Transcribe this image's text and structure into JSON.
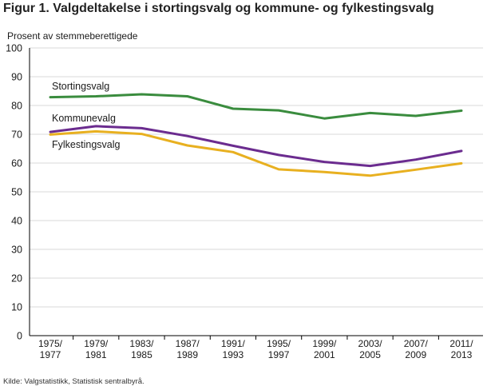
{
  "figure": {
    "title": "Figur 1. Valgdeltakelse i stortingsvalg og kommune- og fylkestingsvalg",
    "source": "Kilde: Valgstatistikk, Statistisk sentralbyrå."
  },
  "chart_data": {
    "type": "line",
    "title": "Figur 1. Valgdeltakelse i stortingsvalg og kommune- og fylkestingsvalg",
    "xlabel": "",
    "ylabel": "Prosent av stemmeberettigede",
    "ylim": [
      0,
      100
    ],
    "yticks": [
      0,
      10,
      20,
      30,
      40,
      50,
      60,
      70,
      80,
      90,
      100
    ],
    "categories": [
      [
        "1975/",
        "1977"
      ],
      [
        "1979/",
        "1981"
      ],
      [
        "1983/",
        "1985"
      ],
      [
        "1987/",
        "1989"
      ],
      [
        "1991/",
        "1993"
      ],
      [
        "1995/",
        "1997"
      ],
      [
        "1999/",
        "2001"
      ],
      [
        "2003/",
        "2005"
      ],
      [
        "2007/",
        "2009"
      ],
      [
        "2011/",
        "2013"
      ]
    ],
    "grid": "horizontal",
    "series": [
      {
        "name": "Stortingsvalg",
        "color": "#3a8c3e",
        "values": [
          82.9,
          83.2,
          83.9,
          83.2,
          78.9,
          78.3,
          75.5,
          77.4,
          76.4,
          78.2
        ]
      },
      {
        "name": "Kommunevalg",
        "color": "#6b2c8f",
        "values": [
          70.8,
          72.8,
          72.1,
          69.4,
          66.0,
          62.8,
          60.4,
          59.0,
          61.2,
          64.2
        ]
      },
      {
        "name": "Fylkestingsvalg",
        "color": "#e8b020",
        "values": [
          69.9,
          71.0,
          70.1,
          66.1,
          63.8,
          57.8,
          56.9,
          55.6,
          57.7,
          59.9
        ]
      }
    ],
    "source": "Kilde: Valgstatistikk, Statistisk sentralbyrå."
  }
}
